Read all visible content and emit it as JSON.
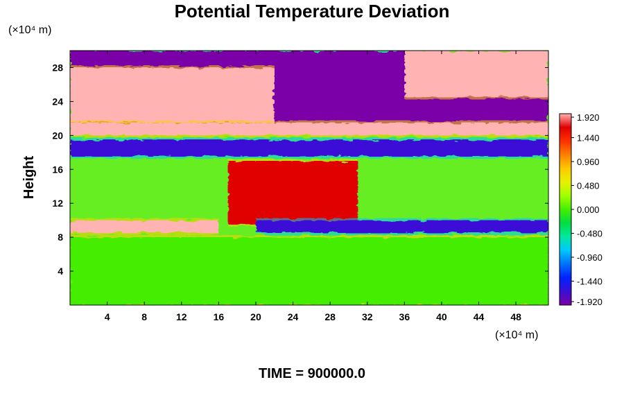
{
  "chart_data": {
    "type": "heatmap",
    "title": "Potential Temperature Deviation",
    "xlabel": "",
    "ylabel": "Height",
    "x_unit_label": "(×10⁴ m)",
    "y_unit_label": "(×10⁴ m)",
    "xlim": [
      0,
      51.5
    ],
    "ylim": [
      0,
      30
    ],
    "x_ticks": [
      "4",
      "8",
      "12",
      "16",
      "20",
      "24",
      "28",
      "32",
      "36",
      "40",
      "44",
      "48"
    ],
    "x_tick_values": [
      4,
      8,
      12,
      16,
      20,
      24,
      28,
      32,
      36,
      40,
      44,
      48
    ],
    "y_ticks": [
      "4",
      "8",
      "12",
      "16",
      "20",
      "24",
      "28"
    ],
    "y_tick_values": [
      4,
      8,
      12,
      16,
      20,
      24,
      28
    ],
    "colorbar": {
      "min": -1.92,
      "max": 1.92,
      "labels": [
        "1.920",
        "1.440",
        "0.960",
        "0.480",
        "0.000",
        "-0.480",
        "-0.960",
        "-1.440",
        "-1.920"
      ],
      "label_values": [
        1.92,
        1.44,
        0.96,
        0.48,
        0.0,
        -0.48,
        -0.96,
        -1.44,
        -1.92
      ],
      "colormap": [
        "#7b00a8",
        "#3b0fd6",
        "#0022ff",
        "#0070ff",
        "#00c8ff",
        "#00e8a0",
        "#00dd44",
        "#44ee00",
        "#a0ff00",
        "#e8f000",
        "#ffc800",
        "#ff8000",
        "#ff3000",
        "#e00000",
        "#ffb3b3"
      ]
    },
    "regions": [
      {
        "name": "upper-layer-negative",
        "x": [
          0,
          51.5
        ],
        "y": [
          21,
          30
        ],
        "value": -1.9
      },
      {
        "name": "upper-left-positive",
        "x": [
          0,
          22
        ],
        "y": [
          21.5,
          28
        ],
        "value": 1.9
      },
      {
        "name": "upper-right-positive",
        "x": [
          36,
          51.5
        ],
        "y": [
          24.5,
          30
        ],
        "value": 1.9
      },
      {
        "name": "band-20km-positive",
        "x": [
          0,
          51.5
        ],
        "y": [
          20,
          21.5
        ],
        "value": 1.9
      },
      {
        "name": "band-18km-negative",
        "x": [
          0,
          51.5
        ],
        "y": [
          17.5,
          19.5
        ],
        "value": -1.6
      },
      {
        "name": "core-warm",
        "x": [
          17,
          31
        ],
        "y": [
          9.5,
          17
        ],
        "value": 1.6
      },
      {
        "name": "band-9km-negative",
        "x": [
          20,
          51.5
        ],
        "y": [
          8.5,
          10
        ],
        "value": -1.7
      },
      {
        "name": "band-9km-positive",
        "x": [
          0,
          16
        ],
        "y": [
          8.5,
          10
        ],
        "value": 1.8
      },
      {
        "name": "lower-layer-neutral",
        "x": [
          0,
          51.5
        ],
        "y": [
          0,
          8
        ],
        "value": 0.1
      }
    ]
  },
  "footer": {
    "time_label": "TIME = 900000.0"
  }
}
